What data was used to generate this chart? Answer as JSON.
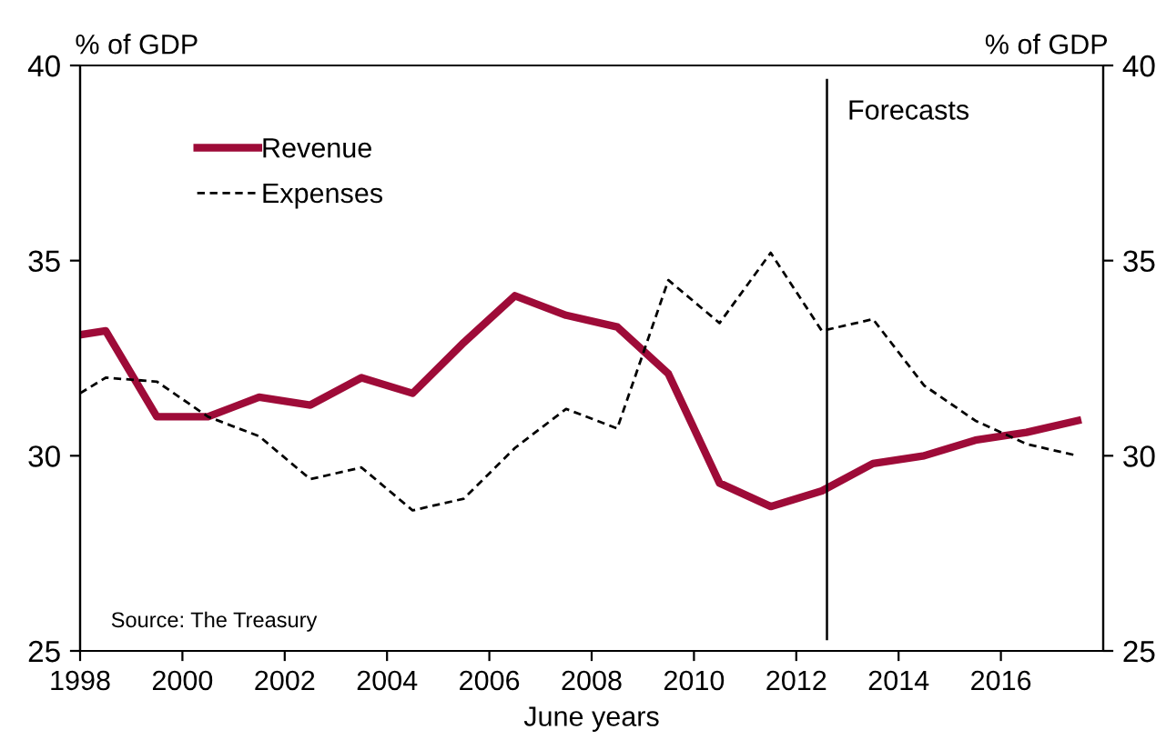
{
  "chart_data": {
    "type": "line",
    "xlabel": "June years",
    "ylabel": "% of GDP",
    "y2label": "% of GDP",
    "series": [
      {
        "name": "Revenue",
        "color": "#9e0b38",
        "line_style": "solid",
        "x": [
          1998,
          1998.5,
          1999.5,
          2000.5,
          2001.5,
          2002.5,
          2003.5,
          2004.5,
          2005.5,
          2006.5,
          2007.5,
          2008.5,
          2009.5,
          2010.5,
          2011.5,
          2012.5,
          2013.5,
          2014.5,
          2015.5,
          2016.5,
          2017.5
        ],
        "values": [
          33.1,
          33.2,
          31.0,
          31.0,
          31.5,
          31.3,
          32.0,
          31.6,
          32.9,
          34.1,
          33.6,
          33.3,
          32.1,
          29.3,
          28.7,
          29.1,
          29.8,
          30.0,
          30.4,
          30.6,
          30.9
        ]
      },
      {
        "name": "Expenses",
        "color": "#000000",
        "line_style": "dashed",
        "x": [
          1998,
          1998.5,
          1999.5,
          2000.5,
          2001.5,
          2002.5,
          2003.5,
          2004.5,
          2005.5,
          2006.5,
          2007.5,
          2008.5,
          2009.5,
          2010.5,
          2011.5,
          2012.5,
          2013.5,
          2014.5,
          2015.5,
          2016.5,
          2017.5
        ],
        "values": [
          31.6,
          32.0,
          31.9,
          31.0,
          30.5,
          29.4,
          29.7,
          28.6,
          28.9,
          30.2,
          31.2,
          30.7,
          34.5,
          33.4,
          35.2,
          33.2,
          33.5,
          31.8,
          30.9,
          30.3,
          30.0
        ]
      }
    ],
    "xlim": [
      1998,
      2018
    ],
    "xticks": [
      1998,
      2000,
      2002,
      2004,
      2006,
      2008,
      2010,
      2012,
      2014,
      2016
    ],
    "ylim": [
      25,
      40
    ],
    "yticks": [
      25,
      30,
      35,
      40
    ],
    "y2lim": [
      25,
      40
    ],
    "y2ticks": [
      25,
      30,
      35,
      40
    ],
    "ref_lines": [
      {
        "axis": "x",
        "value": 2012.6,
        "label": "Forecasts",
        "color": "#000000"
      }
    ],
    "annotations": [
      "Source: The Treasury"
    ],
    "grid": false,
    "legend": "top left",
    "marker": "none"
  }
}
